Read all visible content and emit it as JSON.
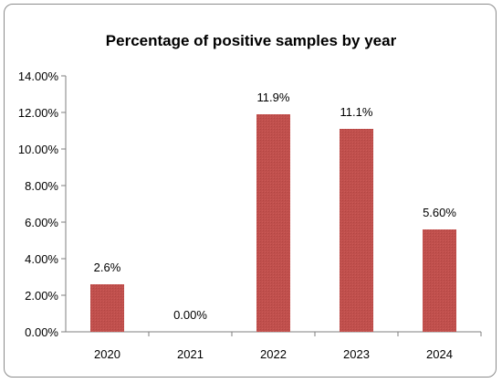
{
  "chart_data": {
    "type": "bar",
    "title": "Percentage of positive samples by year",
    "categories": [
      "2020",
      "2021",
      "2022",
      "2023",
      "2024"
    ],
    "values": [
      2.6,
      0.0,
      11.9,
      11.1,
      5.6
    ],
    "data_labels": [
      "2.6%",
      "0.00%",
      "11.9%",
      "11.1%",
      "5.60%"
    ],
    "ylim": [
      0,
      14
    ],
    "y_ticks": [
      "0.00%",
      "2.00%",
      "4.00%",
      "6.00%",
      "8.00%",
      "10.00%",
      "12.00%",
      "14.00%"
    ],
    "grid": false,
    "legend": "none",
    "bar_color": "#c0504d"
  }
}
